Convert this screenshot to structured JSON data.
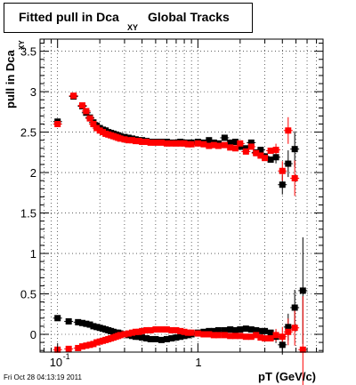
{
  "title": {
    "main": "Fitted pull in Dca",
    "subscript": "XY",
    "suffix": "Global Tracks"
  },
  "footer": "Fri Oct 28 04:13:19 2011",
  "chart_data": {
    "type": "scatter",
    "xlabel": "pT (GeV/c)",
    "ylabel": "pull in Dca",
    "ylabel_sub": "XY",
    "xscale": "log",
    "xlim": [
      0.075,
      7.8
    ],
    "ylim": [
      -0.22,
      3.65
    ],
    "x_ticks": [
      {
        "value": 0.1,
        "label": "10",
        "exp": "-1"
      },
      {
        "value": 1,
        "label": "1",
        "exp": ""
      }
    ],
    "y_ticks": [
      {
        "value": 0,
        "label": "0"
      },
      {
        "value": 0.5,
        "label": "0.5"
      },
      {
        "value": 1,
        "label": "1"
      },
      {
        "value": 1.5,
        "label": "1.5"
      },
      {
        "value": 2,
        "label": "2"
      },
      {
        "value": 2.5,
        "label": "2.5"
      },
      {
        "value": 3,
        "label": "3"
      },
      {
        "value": 3.5,
        "label": "3.5"
      }
    ],
    "grid": true,
    "series": [
      {
        "color": "#000000",
        "points": [
          [
            0.1,
            2.63
          ],
          [
            0.13,
            2.94
          ],
          [
            0.15,
            2.82
          ],
          [
            0.16,
            2.74
          ],
          [
            0.17,
            2.68
          ],
          [
            0.18,
            2.62
          ],
          [
            0.19,
            2.58
          ],
          [
            0.2,
            2.55
          ],
          [
            0.21,
            2.53
          ],
          [
            0.22,
            2.52
          ],
          [
            0.23,
            2.5
          ],
          [
            0.24,
            2.49
          ],
          [
            0.25,
            2.48
          ],
          [
            0.26,
            2.47
          ],
          [
            0.27,
            2.46
          ],
          [
            0.28,
            2.45
          ],
          [
            0.3,
            2.44
          ],
          [
            0.32,
            2.43
          ],
          [
            0.34,
            2.42
          ],
          [
            0.36,
            2.41
          ],
          [
            0.38,
            2.4
          ],
          [
            0.4,
            2.4
          ],
          [
            0.43,
            2.39
          ],
          [
            0.46,
            2.38
          ],
          [
            0.5,
            2.38
          ],
          [
            0.55,
            2.38
          ],
          [
            0.6,
            2.38
          ],
          [
            0.65,
            2.37
          ],
          [
            0.7,
            2.37
          ],
          [
            0.75,
            2.38
          ],
          [
            0.8,
            2.37
          ],
          [
            0.85,
            2.37
          ],
          [
            0.9,
            2.37
          ],
          [
            1.0,
            2.38
          ],
          [
            1.1,
            2.37
          ],
          [
            1.2,
            2.4
          ],
          [
            1.3,
            2.37
          ],
          [
            1.4,
            2.36
          ],
          [
            1.55,
            2.43
          ],
          [
            1.7,
            2.37
          ],
          [
            1.85,
            2.38
          ],
          [
            2.0,
            2.32
          ],
          [
            2.2,
            2.3
          ],
          [
            2.4,
            2.37
          ],
          [
            2.6,
            2.25
          ],
          [
            2.8,
            2.28
          ],
          [
            3.0,
            2.2
          ],
          [
            3.3,
            2.16
          ],
          [
            3.6,
            2.19
          ],
          [
            4.0,
            1.85
          ],
          [
            4.4,
            2.11
          ],
          [
            4.9,
            2.29
          ],
          [
            0.1,
            0.2
          ],
          [
            0.12,
            0.16
          ],
          [
            0.14,
            0.15
          ],
          [
            0.15,
            0.14
          ],
          [
            0.16,
            0.13
          ],
          [
            0.17,
            0.12
          ],
          [
            0.18,
            0.1
          ],
          [
            0.19,
            0.09
          ],
          [
            0.2,
            0.08
          ],
          [
            0.21,
            0.07
          ],
          [
            0.22,
            0.06
          ],
          [
            0.23,
            0.05
          ],
          [
            0.24,
            0.04
          ],
          [
            0.25,
            0.03
          ],
          [
            0.26,
            0.02
          ],
          [
            0.27,
            0.02
          ],
          [
            0.28,
            0.01
          ],
          [
            0.3,
            0.0
          ],
          [
            0.32,
            -0.01
          ],
          [
            0.34,
            -0.02
          ],
          [
            0.36,
            -0.03
          ],
          [
            0.38,
            -0.03
          ],
          [
            0.4,
            -0.04
          ],
          [
            0.43,
            -0.05
          ],
          [
            0.46,
            -0.06
          ],
          [
            0.5,
            -0.06
          ],
          [
            0.55,
            -0.07
          ],
          [
            0.6,
            -0.06
          ],
          [
            0.65,
            -0.05
          ],
          [
            0.7,
            -0.04
          ],
          [
            0.75,
            -0.03
          ],
          [
            0.8,
            -0.02
          ],
          [
            0.85,
            -0.01
          ],
          [
            0.9,
            0.0
          ],
          [
            1.0,
            0.02
          ],
          [
            1.1,
            0.03
          ],
          [
            1.2,
            0.04
          ],
          [
            1.3,
            0.04
          ],
          [
            1.4,
            0.05
          ],
          [
            1.55,
            0.05
          ],
          [
            1.7,
            0.06
          ],
          [
            1.85,
            0.05
          ],
          [
            2.0,
            0.06
          ],
          [
            2.2,
            0.07
          ],
          [
            2.4,
            0.06
          ],
          [
            2.6,
            0.05
          ],
          [
            2.8,
            0.04
          ],
          [
            3.0,
            0.04
          ],
          [
            3.3,
            0.02
          ],
          [
            3.6,
            -0.03
          ],
          [
            4.0,
            -0.13
          ],
          [
            4.4,
            0.09
          ],
          [
            4.9,
            0.33
          ],
          [
            5.6,
            0.54
          ]
        ]
      },
      {
        "color": "#ff0000",
        "points": [
          [
            0.1,
            2.6
          ],
          [
            0.13,
            2.95
          ],
          [
            0.15,
            2.83
          ],
          [
            0.16,
            2.76
          ],
          [
            0.17,
            2.67
          ],
          [
            0.18,
            2.6
          ],
          [
            0.19,
            2.55
          ],
          [
            0.2,
            2.52
          ],
          [
            0.21,
            2.5
          ],
          [
            0.22,
            2.48
          ],
          [
            0.23,
            2.47
          ],
          [
            0.24,
            2.46
          ],
          [
            0.25,
            2.45
          ],
          [
            0.26,
            2.44
          ],
          [
            0.27,
            2.43
          ],
          [
            0.28,
            2.42
          ],
          [
            0.3,
            2.41
          ],
          [
            0.32,
            2.4
          ],
          [
            0.34,
            2.4
          ],
          [
            0.36,
            2.39
          ],
          [
            0.38,
            2.39
          ],
          [
            0.4,
            2.38
          ],
          [
            0.43,
            2.38
          ],
          [
            0.46,
            2.37
          ],
          [
            0.5,
            2.37
          ],
          [
            0.55,
            2.37
          ],
          [
            0.6,
            2.36
          ],
          [
            0.65,
            2.36
          ],
          [
            0.7,
            2.36
          ],
          [
            0.75,
            2.36
          ],
          [
            0.8,
            2.36
          ],
          [
            0.85,
            2.35
          ],
          [
            0.9,
            2.35
          ],
          [
            1.0,
            2.36
          ],
          [
            1.1,
            2.35
          ],
          [
            1.2,
            2.33
          ],
          [
            1.3,
            2.34
          ],
          [
            1.4,
            2.33
          ],
          [
            1.55,
            2.34
          ],
          [
            1.7,
            2.31
          ],
          [
            1.85,
            2.3
          ],
          [
            2.0,
            2.36
          ],
          [
            2.2,
            2.26
          ],
          [
            2.4,
            2.32
          ],
          [
            2.6,
            2.24
          ],
          [
            2.8,
            2.21
          ],
          [
            3.0,
            2.18
          ],
          [
            3.3,
            2.27
          ],
          [
            3.6,
            2.28
          ],
          [
            4.0,
            2.02
          ],
          [
            4.4,
            2.52
          ],
          [
            4.9,
            1.93
          ],
          [
            0.1,
            -0.19
          ],
          [
            0.12,
            -0.18
          ],
          [
            0.14,
            -0.17
          ],
          [
            0.15,
            -0.15
          ],
          [
            0.16,
            -0.14
          ],
          [
            0.17,
            -0.13
          ],
          [
            0.18,
            -0.12
          ],
          [
            0.19,
            -0.1
          ],
          [
            0.2,
            -0.09
          ],
          [
            0.21,
            -0.08
          ],
          [
            0.22,
            -0.07
          ],
          [
            0.23,
            -0.06
          ],
          [
            0.24,
            -0.05
          ],
          [
            0.25,
            -0.04
          ],
          [
            0.26,
            -0.03
          ],
          [
            0.27,
            -0.02
          ],
          [
            0.28,
            -0.01
          ],
          [
            0.3,
            0.0
          ],
          [
            0.32,
            0.01
          ],
          [
            0.34,
            0.02
          ],
          [
            0.36,
            0.03
          ],
          [
            0.38,
            0.03
          ],
          [
            0.4,
            0.04
          ],
          [
            0.43,
            0.05
          ],
          [
            0.46,
            0.05
          ],
          [
            0.5,
            0.06
          ],
          [
            0.55,
            0.06
          ],
          [
            0.6,
            0.06
          ],
          [
            0.65,
            0.05
          ],
          [
            0.7,
            0.05
          ],
          [
            0.75,
            0.04
          ],
          [
            0.8,
            0.03
          ],
          [
            0.85,
            0.02
          ],
          [
            0.9,
            0.02
          ],
          [
            1.0,
            0.01
          ],
          [
            1.1,
            0.0
          ],
          [
            1.2,
            0.0
          ],
          [
            1.3,
            -0.01
          ],
          [
            1.4,
            -0.01
          ],
          [
            1.55,
            -0.01
          ],
          [
            1.7,
            -0.02
          ],
          [
            1.85,
            -0.02
          ],
          [
            2.0,
            -0.02
          ],
          [
            2.2,
            -0.03
          ],
          [
            2.4,
            -0.03
          ],
          [
            2.6,
            -0.01
          ],
          [
            2.8,
            -0.04
          ],
          [
            3.0,
            -0.05
          ],
          [
            3.3,
            -0.05
          ],
          [
            3.6,
            -0.01
          ],
          [
            4.0,
            -0.03
          ],
          [
            4.4,
            0.03
          ],
          [
            4.9,
            0.08
          ],
          [
            5.6,
            -0.19
          ]
        ]
      }
    ]
  }
}
